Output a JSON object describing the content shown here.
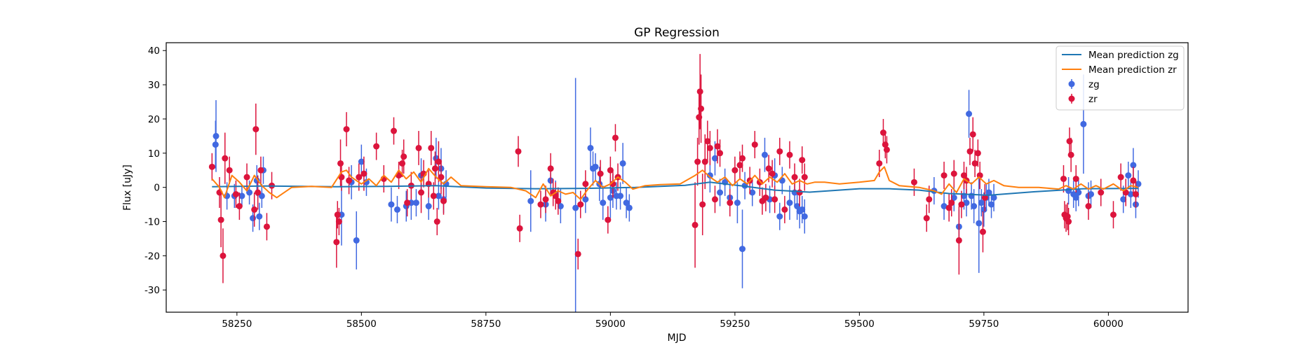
{
  "chart_data": {
    "type": "scatter",
    "title": "GP Regression",
    "xlabel": "MJD",
    "ylabel": "Flux [uJy]",
    "xlim": [
      58108,
      60160
    ],
    "ylim": [
      -36.5,
      42.3
    ],
    "xticks": [
      58250,
      58500,
      58750,
      59000,
      59250,
      59500,
      59750,
      60000
    ],
    "yticks": [
      -30,
      -20,
      -10,
      0,
      10,
      20,
      30,
      40
    ],
    "grid": false,
    "legend_position": "top-right",
    "legend": [
      "Mean prediction zg",
      "Mean prediction zr",
      "zg",
      "zr"
    ],
    "colors": {
      "mean_zg": "#1f77b4",
      "mean_zr": "#ff7f0e",
      "zg": "#4169e1",
      "zr": "#dc143c"
    },
    "lines": [
      {
        "name": "Mean prediction zg",
        "color": "#1f77b4",
        "x": [
          58200,
          58300,
          58450,
          58550,
          58650,
          58750,
          58850,
          58950,
          59050,
          59150,
          59200,
          59260,
          59330,
          59400,
          59500,
          59560,
          59620,
          59680,
          59760,
          59850,
          59950,
          60060
        ],
        "y": [
          0.2,
          0.4,
          0.2,
          0.3,
          0.5,
          -0.2,
          -0.4,
          -0.3,
          0.0,
          0.6,
          1.5,
          0.5,
          -0.8,
          -1.4,
          -0.4,
          -0.4,
          -0.8,
          -1.8,
          -2.3,
          -1.3,
          -0.4,
          -0.3
        ]
      },
      {
        "name": "Mean prediction zr",
        "color": "#ff7f0e",
        "x": [
          58200,
          58215,
          58225,
          58240,
          58255,
          58270,
          58285,
          58300,
          58315,
          58330,
          58360,
          58400,
          58440,
          58460,
          58470,
          58480,
          58490,
          58500,
          58515,
          58530,
          58545,
          58560,
          58575,
          58590,
          58605,
          58620,
          58635,
          58650,
          58665,
          58680,
          58700,
          58750,
          58800,
          58830,
          58850,
          58865,
          58880,
          58895,
          58910,
          58925,
          58940,
          58955,
          58970,
          58985,
          59000,
          59015,
          59030,
          59045,
          59070,
          59100,
          59140,
          59170,
          59185,
          59200,
          59215,
          59230,
          59245,
          59260,
          59275,
          59290,
          59305,
          59320,
          59335,
          59350,
          59365,
          59380,
          59395,
          59410,
          59430,
          59460,
          59500,
          59530,
          59540,
          59550,
          59560,
          59580,
          59620,
          59650,
          59665,
          59680,
          59695,
          59710,
          59725,
          59740,
          59755,
          59770,
          59790,
          59820,
          59860,
          59900,
          59915,
          59930,
          59945,
          59960,
          59975,
          59990,
          60010,
          60030,
          60045,
          60060
        ],
        "y": [
          2.5,
          0.0,
          -3.0,
          3.5,
          1.5,
          -1.0,
          3.5,
          0.5,
          -1.5,
          -3.0,
          0.0,
          0.3,
          0.0,
          4.5,
          5.0,
          3.0,
          2.0,
          1.0,
          2.5,
          0.5,
          3.5,
          1.5,
          5.0,
          2.5,
          4.5,
          1.5,
          5.5,
          3.0,
          1.0,
          3.0,
          0.5,
          0.2,
          0.0,
          -1.0,
          -3.0,
          1.0,
          -2.5,
          -1.0,
          -2.0,
          -1.5,
          -3.5,
          -0.5,
          2.0,
          0.0,
          1.0,
          3.0,
          1.5,
          -0.5,
          0.5,
          0.8,
          1.0,
          3.5,
          5.0,
          3.0,
          1.5,
          3.0,
          0.5,
          2.5,
          1.0,
          3.5,
          1.0,
          3.0,
          1.5,
          4.0,
          1.0,
          2.0,
          1.0,
          1.5,
          1.5,
          1.0,
          1.5,
          2.0,
          4.5,
          6.0,
          2.0,
          0.5,
          0.0,
          -1.0,
          -2.0,
          1.0,
          -1.5,
          2.5,
          1.0,
          3.0,
          1.0,
          2.0,
          0.5,
          0.0,
          0.0,
          -0.5,
          0.5,
          -0.5,
          1.0,
          -0.5,
          0.5,
          -0.5,
          1.0,
          -1.0,
          0.5,
          0.0
        ]
      }
    ],
    "series": [
      {
        "name": "zg",
        "color": "#4169e1",
        "x": [
          58207,
          58208,
          58230,
          58245,
          58260,
          58275,
          58282,
          58290,
          58295,
          58300,
          58303,
          58460,
          58480,
          58490,
          58500,
          58510,
          58560,
          58572,
          58590,
          58600,
          58610,
          58620,
          58635,
          58650,
          58655,
          58660,
          58665,
          58670,
          58840,
          58870,
          58880,
          58890,
          58900,
          58930,
          58950,
          58960,
          58965,
          58970,
          58978,
          58985,
          59000,
          59005,
          59012,
          59020,
          59025,
          59032,
          59038,
          59200,
          59210,
          59220,
          59230,
          59240,
          59255,
          59265,
          59270,
          59285,
          59310,
          59320,
          59330,
          59340,
          59345,
          59360,
          59370,
          59375,
          59380,
          59385,
          59390,
          59650,
          59670,
          59690,
          59700,
          59710,
          59715,
          59720,
          59725,
          59730,
          59740,
          59745,
          59750,
          59755,
          59760,
          59765,
          59770,
          59920,
          59930,
          59935,
          59940,
          59950,
          59960,
          59965,
          60030,
          60040,
          60045,
          60050,
          60055,
          60060
        ],
        "y": [
          12.5,
          15.0,
          -2.5,
          -2.5,
          -2.5,
          -1.5,
          -9.0,
          2.0,
          -8.5,
          -2.5,
          5.0,
          -8.0,
          1.5,
          -15.5,
          7.5,
          1.5,
          -5.0,
          -6.5,
          -5.5,
          -4.5,
          -4.5,
          3.5,
          -5.5,
          8.5,
          -2.5,
          5.5,
          -3.5,
          1.0,
          -4.0,
          -5.0,
          2.0,
          -2.0,
          -5.5,
          -6.0,
          -3.5,
          11.5,
          5.5,
          6.0,
          1.0,
          -4.5,
          -3.0,
          -1.0,
          -2.5,
          -2.5,
          7.0,
          -4.5,
          -6.0,
          3.5,
          8.5,
          -1.5,
          1.5,
          -3.0,
          -4.5,
          -18.0,
          0.5,
          -1.5,
          9.5,
          -3.5,
          3.5,
          -8.5,
          2.0,
          -4.5,
          -1.5,
          -5.5,
          -7.0,
          -6.5,
          -8.5,
          -1.0,
          -5.5,
          -3.0,
          -11.5,
          -2.5,
          -4.5,
          21.5,
          -2.5,
          -5.5,
          -10.5,
          -4.5,
          -6.5,
          -3.0,
          -1.5,
          -5.0,
          -3.0,
          -1.0,
          -2.0,
          -3.0,
          -1.5,
          18.5,
          -2.5,
          -2.0,
          -3.5,
          3.5,
          -2.0,
          6.5,
          -5.0,
          1.0
        ],
        "yerr": [
          7.0,
          10.5,
          4.0,
          3.5,
          3.0,
          3.5,
          4.0,
          4.5,
          4.0,
          3.5,
          4.0,
          9.0,
          5.0,
          8.5,
          5.0,
          4.0,
          5.0,
          4.0,
          4.5,
          5.0,
          4.0,
          5.0,
          4.0,
          6.0,
          4.0,
          6.0,
          4.0,
          4.0,
          9.0,
          5.0,
          4.0,
          4.0,
          5.0,
          38.0,
          4.0,
          6.0,
          5.0,
          4.0,
          5.0,
          5.0,
          6.0,
          5.0,
          4.0,
          4.0,
          6.0,
          4.5,
          4.0,
          5.0,
          5.0,
          4.0,
          4.0,
          4.0,
          6.0,
          11.5,
          4.0,
          4.0,
          5.0,
          4.0,
          5.0,
          4.0,
          4.0,
          5.0,
          4.0,
          4.0,
          5.0,
          4.0,
          5.0,
          4.0,
          4.0,
          4.0,
          5.0,
          4.0,
          4.0,
          7.0,
          4.0,
          5.0,
          14.5,
          4.0,
          5.0,
          4.0,
          4.0,
          4.0,
          4.0,
          4.0,
          4.0,
          4.0,
          4.0,
          14.5,
          4.0,
          4.0,
          4.0,
          4.0,
          4.0,
          5.0,
          4.0,
          4.0
        ]
      },
      {
        "name": "zr",
        "color": "#dc143c",
        "x": [
          58200,
          58215,
          58218,
          58222,
          58226,
          58235,
          58248,
          58255,
          58270,
          58285,
          58288,
          58292,
          58298,
          58310,
          58320,
          58450,
          58452,
          58455,
          58458,
          58460,
          58470,
          58475,
          58495,
          58505,
          58530,
          58545,
          58565,
          58575,
          58582,
          58585,
          58592,
          58600,
          58615,
          58620,
          58625,
          58635,
          58640,
          58645,
          58648,
          58652,
          58655,
          58660,
          58665,
          58815,
          58818,
          58860,
          58870,
          58880,
          58885,
          58890,
          58895,
          58935,
          58940,
          58950,
          58980,
          58995,
          59000,
          59005,
          59010,
          59015,
          59170,
          59175,
          59178,
          59180,
          59182,
          59185,
          59190,
          59195,
          59200,
          59210,
          59215,
          59220,
          59240,
          59250,
          59260,
          59265,
          59280,
          59290,
          59300,
          59305,
          59312,
          59318,
          59325,
          59330,
          59340,
          59350,
          59360,
          59370,
          59380,
          59385,
          59390,
          59540,
          59548,
          59552,
          59555,
          59610,
          59635,
          59640,
          59670,
          59680,
          59685,
          59690,
          59700,
          59705,
          59710,
          59715,
          59722,
          59728,
          59732,
          59738,
          59742,
          59748,
          59752,
          59910,
          59912,
          59915,
          59918,
          59920,
          59922,
          59925,
          59935,
          59960,
          59985,
          60010,
          60025,
          60035,
          60050,
          60055
        ],
        "y": [
          6.0,
          -1.5,
          -9.5,
          -20.0,
          8.5,
          5.0,
          -2.0,
          -5.5,
          3.0,
          -6.5,
          17.0,
          -1.5,
          5.0,
          -11.5,
          0.5,
          -16.0,
          -8.0,
          -10.0,
          7.0,
          3.0,
          17.0,
          2.0,
          3.0,
          4.0,
          12.0,
          2.5,
          16.5,
          3.5,
          7.0,
          9.0,
          -4.5,
          0.5,
          11.5,
          -1.5,
          4.0,
          1.0,
          11.5,
          -2.5,
          5.5,
          -10.0,
          7.5,
          3.0,
          -4.0,
          10.5,
          -12.0,
          -5.0,
          -3.5,
          5.5,
          -1.5,
          -2.5,
          -4.0,
          -19.5,
          -5.0,
          1.0,
          4.0,
          -9.5,
          5.0,
          1.0,
          14.5,
          3.0,
          -11.0,
          7.5,
          20.5,
          28.0,
          23.0,
          -5.0,
          7.5,
          13.5,
          11.5,
          -3.5,
          12.0,
          10.0,
          -4.5,
          5.0,
          6.5,
          8.5,
          2.0,
          12.5,
          1.5,
          -4.0,
          -3.0,
          5.5,
          4.0,
          -3.5,
          10.5,
          -6.5,
          9.5,
          3.0,
          -1.5,
          8.0,
          3.0,
          7.0,
          16.0,
          12.5,
          11.0,
          1.5,
          -9.0,
          -3.5,
          3.5,
          -6.0,
          -4.5,
          4.0,
          -15.5,
          -5.0,
          3.5,
          2.0,
          10.5,
          15.5,
          7.0,
          10.0,
          3.5,
          -13.0,
          -3.0,
          2.5,
          -8.0,
          -9.0,
          -8.5,
          -10.0,
          13.5,
          9.5,
          2.5,
          -5.5,
          -1.5,
          -8.0,
          3.0,
          -1.5,
          2.0,
          -2.0
        ],
        "yerr": [
          4.0,
          4.5,
          8.0,
          8.0,
          7.5,
          4.0,
          4.0,
          4.0,
          4.0,
          5.0,
          7.5,
          5.0,
          4.0,
          4.0,
          4.0,
          7.5,
          4.0,
          4.0,
          7.0,
          4.0,
          5.0,
          4.0,
          4.0,
          5.0,
          4.0,
          4.0,
          4.0,
          4.0,
          4.0,
          5.0,
          4.0,
          4.0,
          5.0,
          6.0,
          4.0,
          4.0,
          5.0,
          4.0,
          5.0,
          4.0,
          6.0,
          5.0,
          4.0,
          4.5,
          4.0,
          4.0,
          4.0,
          4.5,
          4.0,
          4.0,
          4.0,
          4.5,
          4.0,
          4.0,
          4.0,
          4.0,
          4.0,
          4.0,
          4.0,
          4.0,
          12.5,
          7.0,
          8.0,
          11.0,
          10.0,
          9.0,
          8.0,
          6.0,
          5.0,
          4.0,
          5.0,
          4.0,
          4.0,
          4.0,
          4.0,
          4.0,
          4.0,
          4.0,
          4.0,
          4.0,
          4.0,
          4.0,
          4.0,
          4.0,
          4.0,
          4.0,
          4.0,
          4.0,
          4.0,
          4.0,
          4.0,
          4.0,
          4.0,
          4.0,
          4.0,
          4.0,
          4.0,
          4.0,
          4.0,
          4.0,
          4.0,
          4.0,
          10.0,
          4.0,
          4.0,
          4.0,
          4.0,
          5.0,
          4.0,
          4.0,
          4.0,
          6.0,
          4.0,
          4.0,
          4.0,
          4.0,
          4.0,
          4.0,
          4.0,
          5.0,
          4.0,
          4.0,
          4.0,
          4.0,
          4.0,
          4.0,
          4.0,
          4.0
        ]
      }
    ]
  }
}
